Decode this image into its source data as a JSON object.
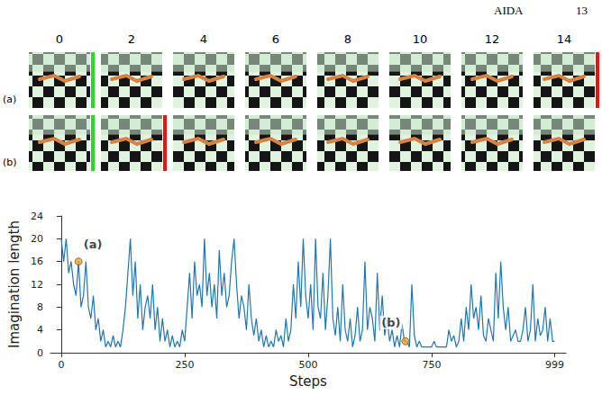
{
  "header": {
    "title": "AIDA",
    "page": "13"
  },
  "frame_columns": [
    0,
    2,
    4,
    6,
    8,
    10,
    12,
    14
  ],
  "rows": [
    {
      "label": "(a)",
      "start": 0,
      "end": 14
    },
    {
      "label": "(b)",
      "start": 0,
      "end": 2
    }
  ],
  "chart_data": {
    "type": "line",
    "x_label": "Steps",
    "y_label": "Imagination length",
    "color": "#1f77b4",
    "grid": false,
    "xlim": [
      -22,
      1022
    ],
    "xticks": [
      0,
      250,
      500,
      750,
      999
    ],
    "ylim": [
      0,
      24
    ],
    "yticks": [
      0,
      4,
      8,
      12,
      16,
      20,
      24
    ],
    "x": [
      0,
      5,
      10,
      15,
      20,
      25,
      30,
      35,
      40,
      45,
      50,
      55,
      60,
      65,
      70,
      75,
      80,
      85,
      90,
      95,
      100,
      105,
      110,
      115,
      120,
      125,
      130,
      135,
      140,
      145,
      150,
      155,
      160,
      165,
      170,
      175,
      180,
      185,
      190,
      195,
      200,
      205,
      210,
      215,
      220,
      225,
      230,
      235,
      240,
      245,
      250,
      255,
      260,
      265,
      270,
      275,
      280,
      285,
      290,
      295,
      300,
      305,
      310,
      315,
      320,
      325,
      330,
      335,
      340,
      345,
      350,
      355,
      360,
      365,
      370,
      375,
      380,
      385,
      390,
      395,
      400,
      405,
      410,
      415,
      420,
      425,
      430,
      435,
      440,
      445,
      450,
      455,
      460,
      465,
      470,
      475,
      480,
      485,
      490,
      495,
      500,
      505,
      510,
      515,
      520,
      525,
      530,
      535,
      540,
      545,
      550,
      555,
      560,
      565,
      570,
      575,
      580,
      585,
      590,
      595,
      600,
      605,
      610,
      615,
      620,
      625,
      630,
      635,
      640,
      645,
      650,
      655,
      660,
      665,
      670,
      675,
      680,
      685,
      690,
      695,
      700,
      705,
      710,
      715,
      720,
      725,
      730,
      735,
      740,
      745,
      750,
      755,
      760,
      765,
      770,
      775,
      780,
      785,
      790,
      795,
      800,
      805,
      810,
      815,
      820,
      825,
      830,
      835,
      840,
      845,
      850,
      855,
      860,
      865,
      870,
      875,
      880,
      885,
      890,
      895,
      900,
      905,
      910,
      915,
      920,
      925,
      930,
      935,
      940,
      945,
      950,
      955,
      960,
      965,
      970,
      975,
      980,
      985,
      990,
      995,
      999
    ],
    "values": [
      20,
      16,
      20,
      14,
      16,
      12,
      10,
      16,
      8,
      10,
      16,
      8,
      6,
      10,
      4,
      6,
      2,
      4,
      1,
      2,
      1,
      3,
      1,
      2,
      1,
      4,
      8,
      14,
      20,
      10,
      16,
      6,
      12,
      4,
      8,
      10,
      6,
      12,
      4,
      8,
      2,
      6,
      2,
      4,
      1,
      3,
      1,
      2,
      1,
      4,
      2,
      8,
      14,
      6,
      16,
      10,
      12,
      8,
      20,
      10,
      14,
      8,
      12,
      6,
      18,
      10,
      14,
      8,
      10,
      16,
      20,
      12,
      6,
      10,
      8,
      4,
      12,
      6,
      3,
      6,
      2,
      4,
      1,
      3,
      1,
      2,
      1,
      4,
      2,
      3,
      1,
      6,
      2,
      4,
      12,
      6,
      16,
      8,
      20,
      10,
      6,
      12,
      4,
      20,
      8,
      6,
      14,
      4,
      10,
      20,
      6,
      3,
      8,
      2,
      12,
      4,
      2,
      6,
      1,
      3,
      8,
      2,
      4,
      16,
      4,
      8,
      6,
      2,
      14,
      4,
      10,
      3,
      6,
      2,
      4,
      1,
      3,
      1,
      5,
      2,
      2,
      1,
      12,
      3,
      1,
      2,
      1,
      1,
      1,
      1,
      1,
      2,
      1,
      1,
      1,
      1,
      1,
      4,
      2,
      3,
      1,
      2,
      6,
      2,
      8,
      4,
      12,
      6,
      8,
      4,
      10,
      3,
      2,
      6,
      4,
      2,
      14,
      6,
      16,
      8,
      4,
      8,
      2,
      3,
      4,
      2,
      2,
      4,
      8,
      2,
      4,
      12,
      2,
      6,
      3,
      4,
      8,
      2,
      6,
      2,
      2
    ],
    "annotations": [
      {
        "text": "(a)",
        "x": 35,
        "y": 16,
        "color": "#f0a030"
      },
      {
        "text": "(b)",
        "x": 697,
        "y": 2,
        "color": "#f0a030"
      }
    ]
  }
}
